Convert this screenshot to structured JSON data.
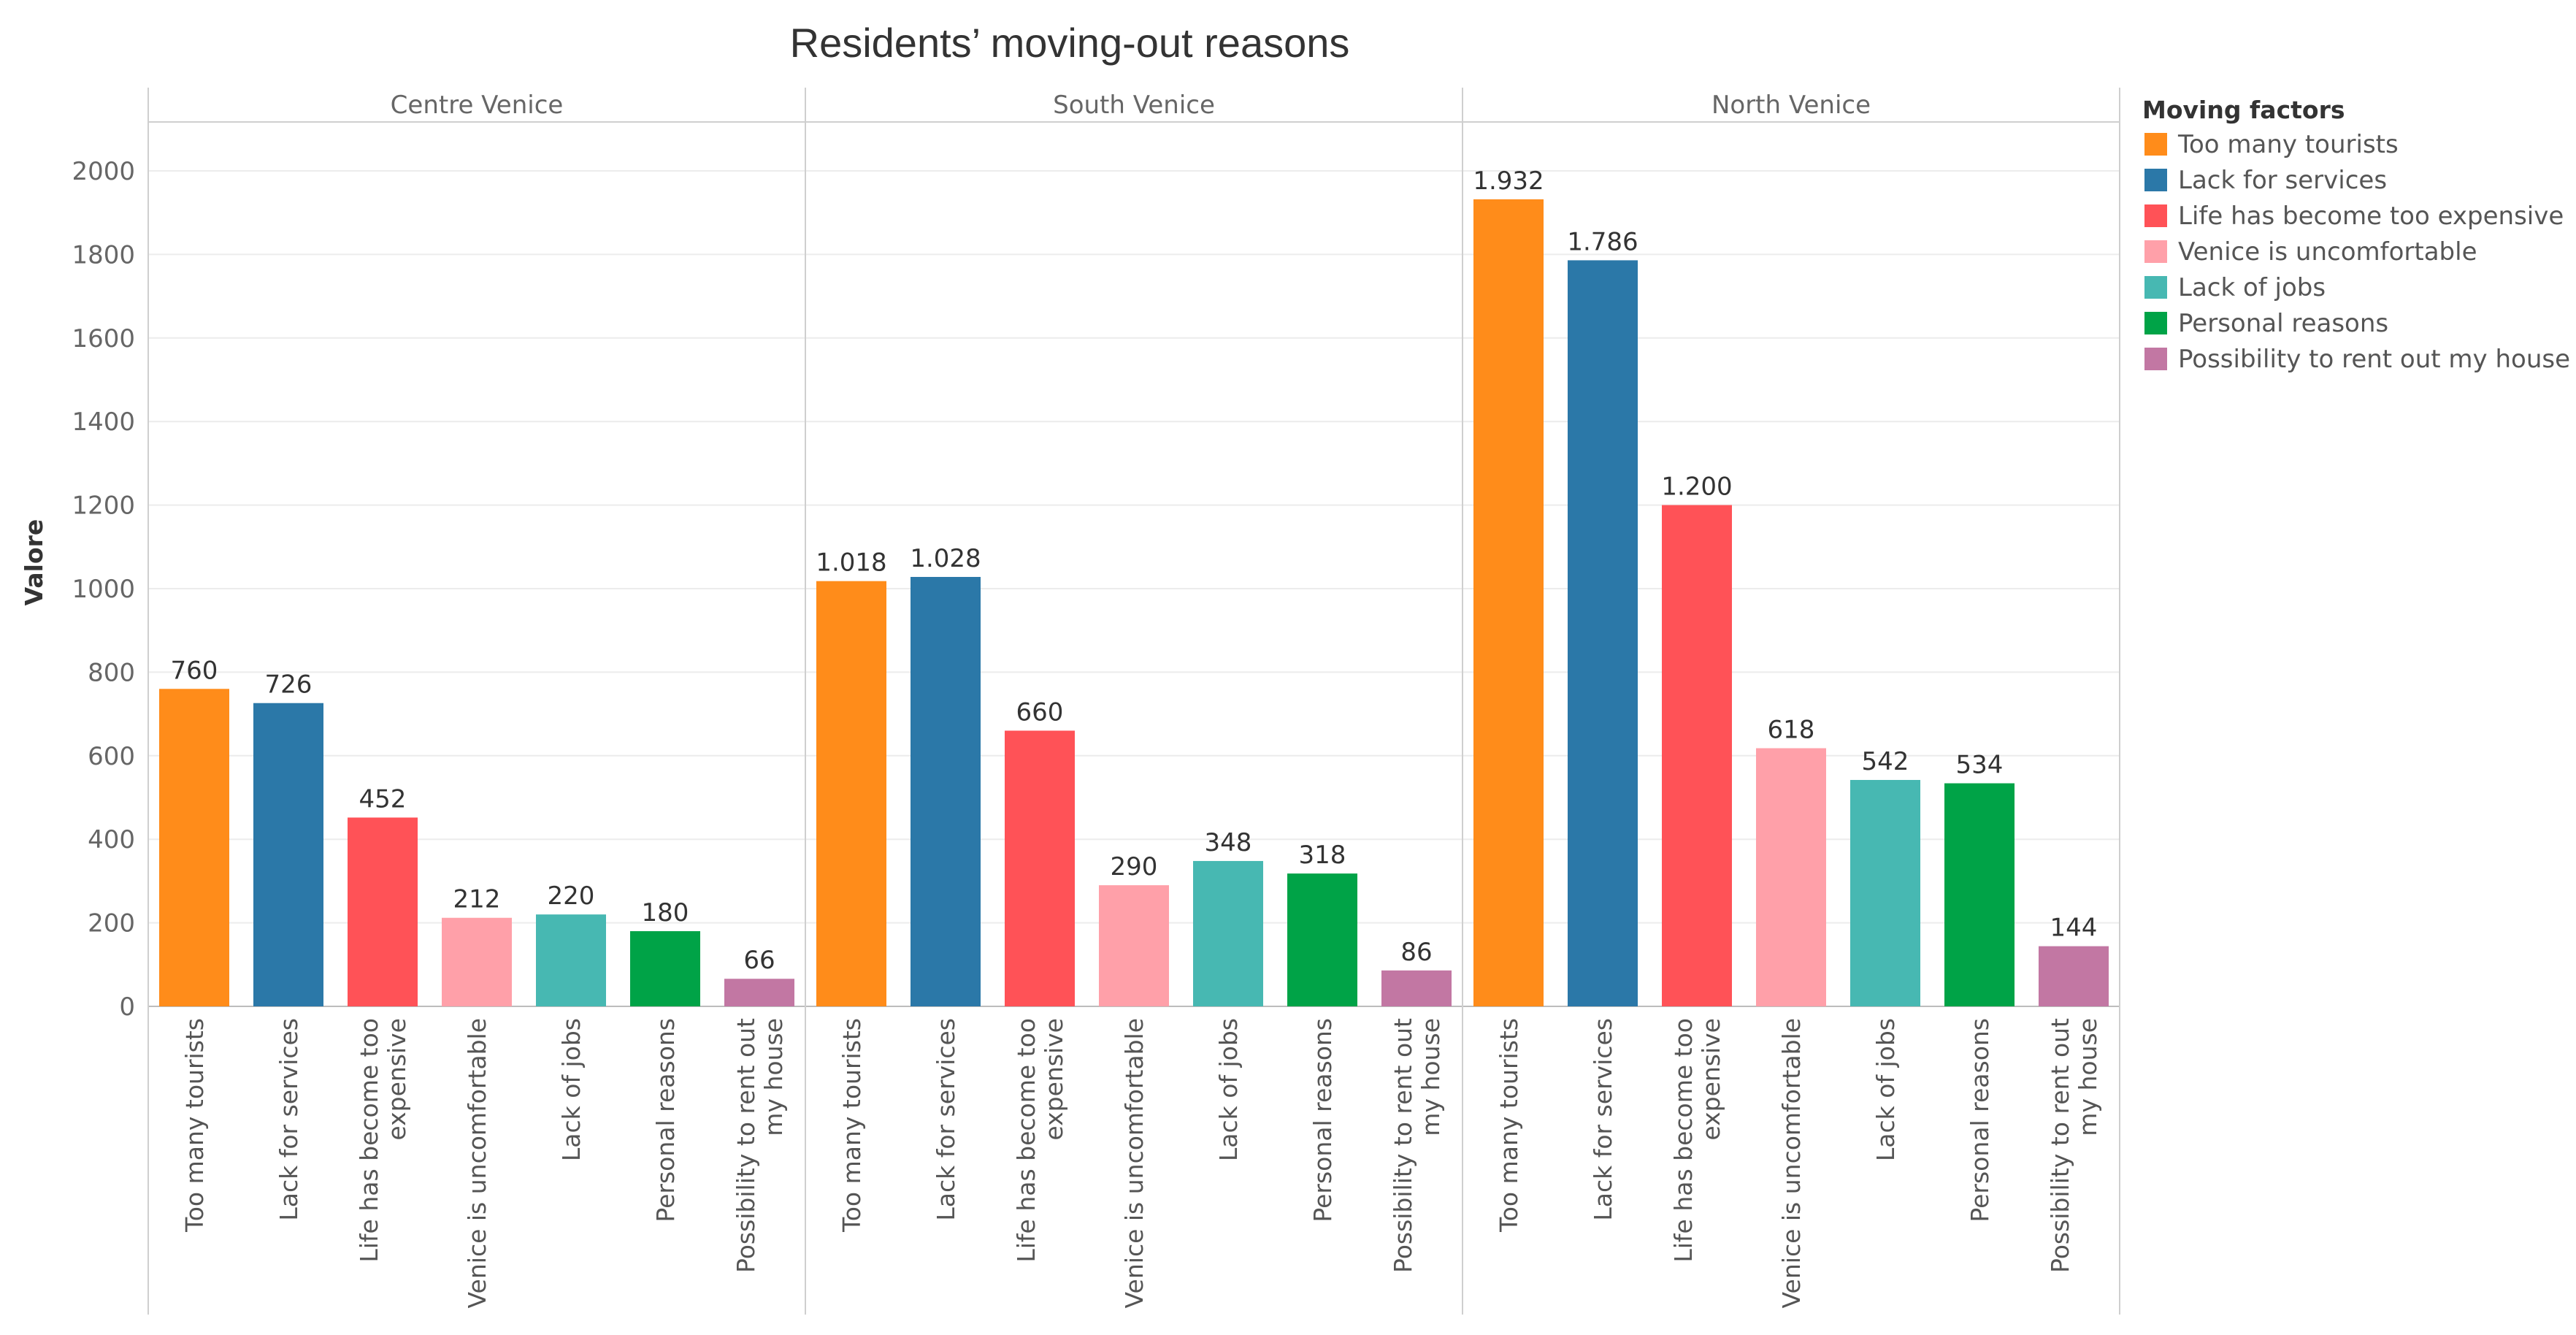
{
  "chart_data": {
    "type": "bar",
    "title": "Residents’ moving-out reasons",
    "ylabel": "Valore",
    "xlabel": "",
    "ylim": [
      0,
      2100
    ],
    "yticks": [
      0,
      200,
      400,
      600,
      800,
      1000,
      1200,
      1400,
      1600,
      1800,
      2000
    ],
    "grid": true,
    "legend_position": "right",
    "legend_title": "Moving factors",
    "categories": [
      "Too many tourists",
      "Lack for services",
      "Life has become too expensive",
      "Venice is uncomfortable",
      "Lack of jobs",
      "Personal reasons",
      "Possibility to rent out my house"
    ],
    "category_axis_labels": [
      [
        "Too many tourists"
      ],
      [
        "Lack for services"
      ],
      [
        "Life has become too",
        "expensive"
      ],
      [
        "Venice is uncomfortable"
      ],
      [
        "Lack of jobs"
      ],
      [
        "Personal reasons"
      ],
      [
        "Possibility to rent out",
        "my house"
      ]
    ],
    "colors": [
      "#ff8c1a",
      "#2b78a8",
      "#ff5257",
      "#ffa0a9",
      "#47b8b2",
      "#00a347",
      "#c277a3"
    ],
    "panels": [
      {
        "name": "Centre Venice",
        "values": [
          760,
          726,
          452,
          212,
          220,
          180,
          66
        ],
        "labels": [
          "760",
          "726",
          "452",
          "212",
          "220",
          "180",
          "66"
        ]
      },
      {
        "name": "South Venice",
        "values": [
          1018,
          1028,
          660,
          290,
          348,
          318,
          86
        ],
        "labels": [
          "1.018",
          "1.028",
          "660",
          "290",
          "348",
          "318",
          "86"
        ]
      },
      {
        "name": "North Venice",
        "values": [
          1932,
          1786,
          1200,
          618,
          542,
          534,
          144
        ],
        "labels": [
          "1.932",
          "1.786",
          "1.200",
          "618",
          "542",
          "534",
          "144"
        ]
      }
    ]
  }
}
